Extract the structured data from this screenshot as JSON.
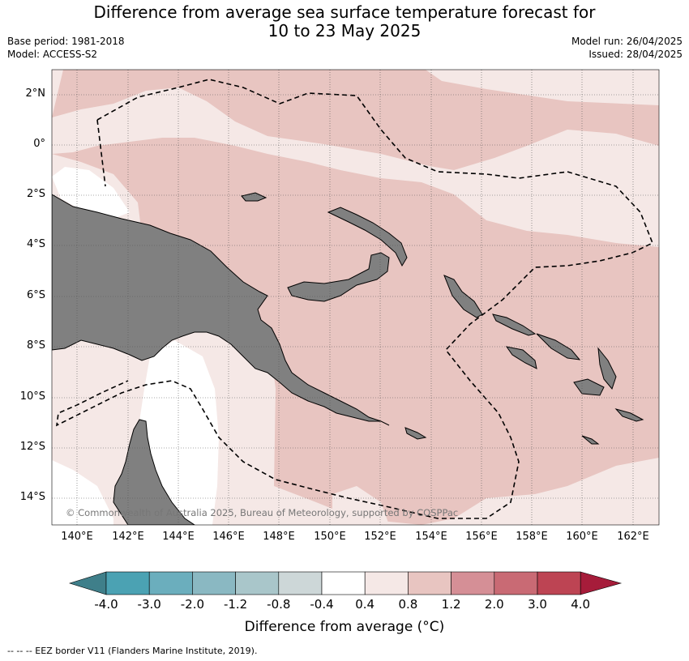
{
  "title": {
    "line1": "Difference from average sea surface temperature forecast for",
    "line2": "10 to 23 May 2025"
  },
  "meta_left": {
    "base_period": "Base period: 1981-2018",
    "model": "Model: ACCESS-S2"
  },
  "meta_right": {
    "model_run": "Model run: 26/04/2025",
    "issued": "Issued: 28/04/2025"
  },
  "map": {
    "lat_labels": [
      "2°N",
      "0°",
      "2°S",
      "4°S",
      "6°S",
      "8°S",
      "10°S",
      "12°S",
      "14°S"
    ],
    "lon_labels": [
      "140°E",
      "142°E",
      "144°E",
      "146°E",
      "148°E",
      "150°E",
      "152°E",
      "154°E",
      "156°E",
      "158°E",
      "160°E",
      "162°E"
    ],
    "copyright": "© Commonwealth of Australia 2025, Bureau of Meteorology, supported by COSPPac",
    "colors": {
      "land": "#808080",
      "anom_0_4_0_8": "#f5e8e6",
      "anom_0_8_1_2": "#e8c5c1",
      "neutral": "#ffffff"
    }
  },
  "colorbar": {
    "ticks": [
      "-4.0",
      "-3.0",
      "-2.0",
      "-1.2",
      "-0.8",
      "-0.4",
      "0.4",
      "0.8",
      "1.2",
      "2.0",
      "3.0",
      "4.0"
    ],
    "colors": [
      "#3f7f8a",
      "#4ba2b3",
      "#6baebd",
      "#8ab8c2",
      "#a9c6ca",
      "#cdd7d8",
      "#ffffff",
      "#f5e8e6",
      "#e8c5c1",
      "#d58f96",
      "#c96a74",
      "#bd4453",
      "#a61c3a"
    ],
    "label": "Difference from average (°C)"
  },
  "footer": "--  --  -- EEZ border V11 (Flanders Marine Institute, 2019)."
}
